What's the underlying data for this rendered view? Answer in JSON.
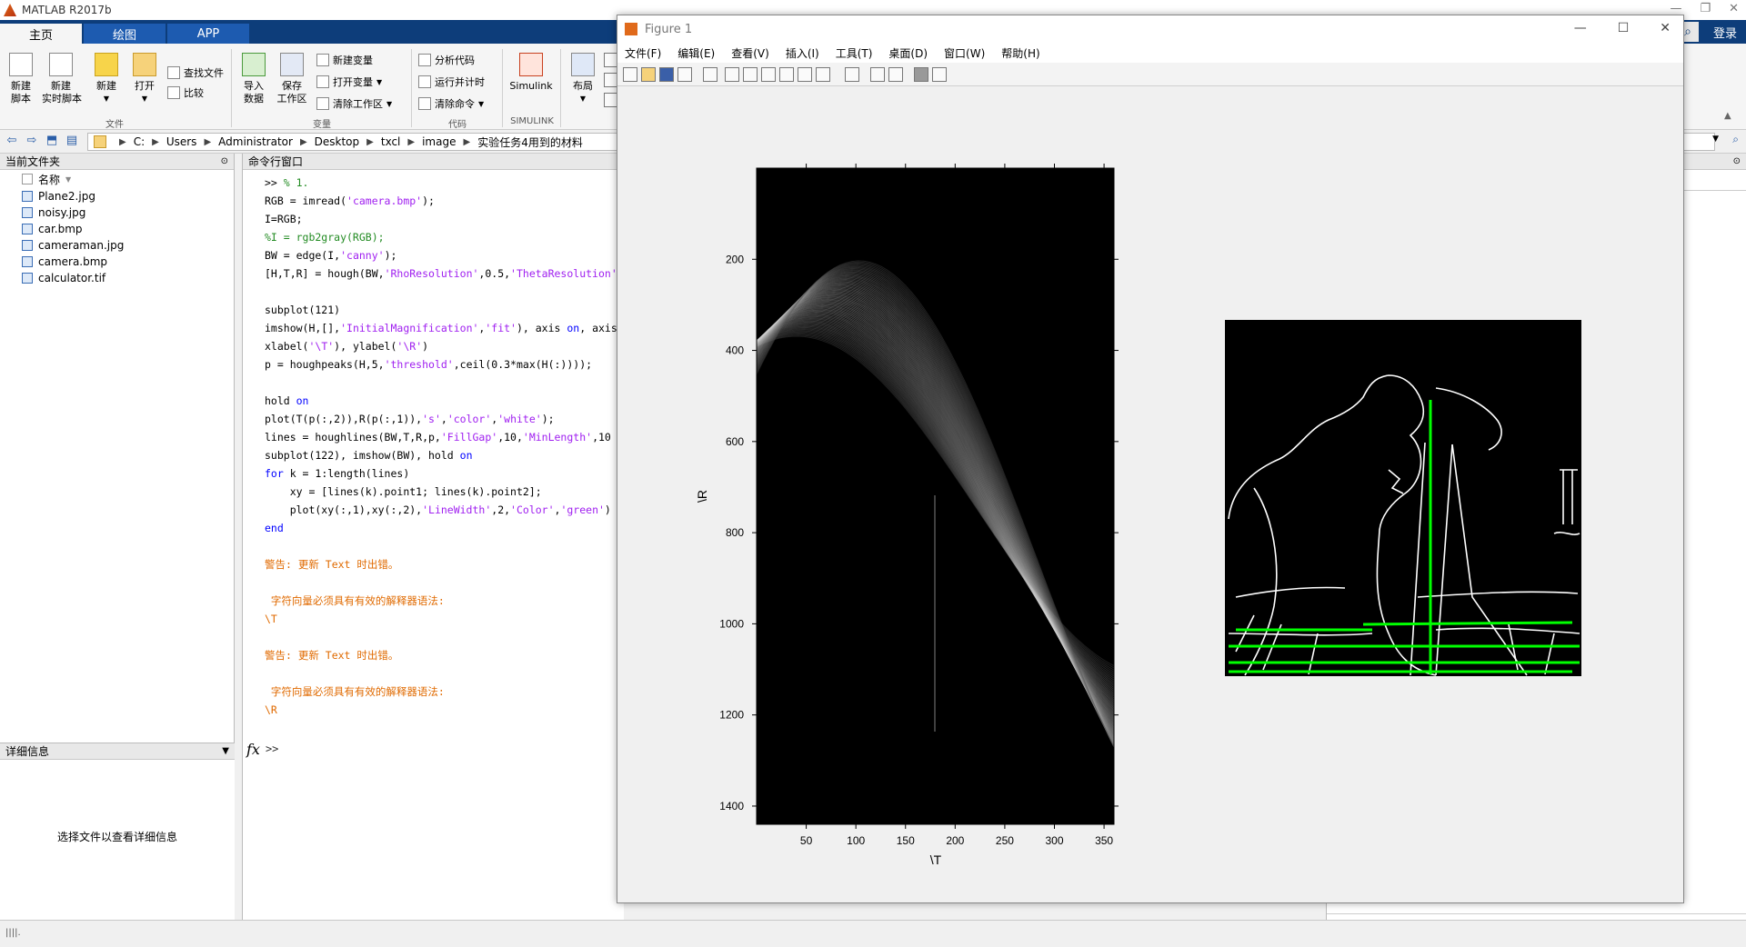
{
  "app": {
    "title": "MATLAB R2017b",
    "login": "登录"
  },
  "tabs": [
    "主页",
    "绘图",
    "APP"
  ],
  "ribbon": {
    "new_script": "新建\n脚本",
    "new_live_script": "新建\n实时脚本",
    "new": "新建",
    "open": "打开",
    "find_files": "查找文件",
    "compare": "比较",
    "import_data": "导入\n数据",
    "save_workspace": "保存\n工作区",
    "new_variable": "新建变量",
    "open_variable": "打开变量",
    "clear_workspace": "清除工作区",
    "analyze_code": "分析代码",
    "run_and_time": "运行并计时",
    "clear_commands": "清除命令",
    "simulink": "Simulink",
    "layout": "布局",
    "groups": {
      "file": "文件",
      "variable": "变量",
      "code": "代码",
      "simulink": "SIMULINK"
    }
  },
  "address": {
    "segments": [
      "C:",
      "Users",
      "Administrator",
      "Desktop",
      "txcl",
      "image",
      "实验任务4用到的材料"
    ]
  },
  "current_folder": {
    "title": "当前文件夹",
    "col_name": "名称",
    "files": [
      "Plane2.jpg",
      "noisy.jpg",
      "car.bmp",
      "cameraman.jpg",
      "camera.bmp",
      "calculator.tif"
    ]
  },
  "details": {
    "title": "详细信息",
    "message": "选择文件以查看详细信息"
  },
  "command_window": {
    "title": "命令行窗口",
    "prompt": ">>",
    "lines": [
      [
        {
          "t": ">> ",
          "c": ""
        },
        {
          "t": "% 1.",
          "c": "cm"
        }
      ],
      [
        {
          "t": "RGB = imread(",
          "c": ""
        },
        {
          "t": "'camera.bmp'",
          "c": "str"
        },
        {
          "t": ");",
          "c": ""
        }
      ],
      [
        {
          "t": "I=RGB;",
          "c": ""
        }
      ],
      [
        {
          "t": "%I = rgb2gray(RGB);",
          "c": "cm"
        }
      ],
      [
        {
          "t": "BW = edge(I,",
          "c": ""
        },
        {
          "t": "'canny'",
          "c": "str"
        },
        {
          "t": ");",
          "c": ""
        }
      ],
      [
        {
          "t": "[H,T,R] = hough(BW,",
          "c": ""
        },
        {
          "t": "'RhoResolution'",
          "c": "str"
        },
        {
          "t": ",0.5,",
          "c": ""
        },
        {
          "t": "'ThetaResolution'",
          "c": "str"
        }
      ],
      [
        {
          "t": "",
          "c": ""
        }
      ],
      [
        {
          "t": "subplot(121)",
          "c": ""
        }
      ],
      [
        {
          "t": "imshow(H,[],",
          "c": ""
        },
        {
          "t": "'InitialMagnification'",
          "c": "str"
        },
        {
          "t": ",",
          "c": ""
        },
        {
          "t": "'fit'",
          "c": "str"
        },
        {
          "t": "), axis ",
          "c": ""
        },
        {
          "t": "on",
          "c": "kw"
        },
        {
          "t": ", axis",
          "c": ""
        }
      ],
      [
        {
          "t": "xlabel(",
          "c": ""
        },
        {
          "t": "'\\T'",
          "c": "str"
        },
        {
          "t": "), ylabel(",
          "c": ""
        },
        {
          "t": "'\\R'",
          "c": "str"
        },
        {
          "t": ")",
          "c": ""
        }
      ],
      [
        {
          "t": "p = houghpeaks(H,5,",
          "c": ""
        },
        {
          "t": "'threshold'",
          "c": "str"
        },
        {
          "t": ",ceil(0.3*max(H(:))));",
          "c": ""
        }
      ],
      [
        {
          "t": "",
          "c": ""
        }
      ],
      [
        {
          "t": "hold ",
          "c": ""
        },
        {
          "t": "on",
          "c": "kw"
        }
      ],
      [
        {
          "t": "plot(T(p(:,2)),R(p(:,1)),",
          "c": ""
        },
        {
          "t": "'s'",
          "c": "str"
        },
        {
          "t": ",",
          "c": ""
        },
        {
          "t": "'color'",
          "c": "str"
        },
        {
          "t": ",",
          "c": ""
        },
        {
          "t": "'white'",
          "c": "str"
        },
        {
          "t": ");",
          "c": ""
        }
      ],
      [
        {
          "t": "lines = houghlines(BW,T,R,p,",
          "c": ""
        },
        {
          "t": "'FillGap'",
          "c": "str"
        },
        {
          "t": ",10,",
          "c": ""
        },
        {
          "t": "'MinLength'",
          "c": "str"
        },
        {
          "t": ",10",
          "c": ""
        }
      ],
      [
        {
          "t": "subplot(122), imshow(BW), hold ",
          "c": ""
        },
        {
          "t": "on",
          "c": "kw"
        }
      ],
      [
        {
          "t": "for",
          "c": "kw"
        },
        {
          "t": " k = 1:length(lines)",
          "c": ""
        }
      ],
      [
        {
          "t": "    xy = [lines(k).point1; lines(k).point2];",
          "c": ""
        }
      ],
      [
        {
          "t": "    plot(xy(:,1),xy(:,2),",
          "c": ""
        },
        {
          "t": "'LineWidth'",
          "c": "str"
        },
        {
          "t": ",2,",
          "c": ""
        },
        {
          "t": "'Color'",
          "c": "str"
        },
        {
          "t": ",",
          "c": ""
        },
        {
          "t": "'green'",
          "c": "str"
        },
        {
          "t": ")",
          "c": ""
        }
      ],
      [
        {
          "t": "end",
          "c": "kw"
        }
      ],
      [
        {
          "t": "",
          "c": ""
        }
      ],
      [
        {
          "t": "警告: 更新 Text 时出错。",
          "c": "warn"
        }
      ],
      [
        {
          "t": "",
          "c": ""
        }
      ],
      [
        {
          "t": " 字符向量必须具有有效的解释器语法:",
          "c": "warn"
        }
      ],
      [
        {
          "t": "\\T",
          "c": "warn"
        }
      ],
      [
        {
          "t": "",
          "c": ""
        }
      ],
      [
        {
          "t": "警告: 更新 Text 时出错。",
          "c": "warn"
        }
      ],
      [
        {
          "t": "",
          "c": ""
        }
      ],
      [
        {
          "t": " 字符向量必须具有有效的解释器语法:",
          "c": "warn"
        }
      ],
      [
        {
          "t": "\\R",
          "c": "warn"
        }
      ]
    ]
  },
  "figure": {
    "title": "Figure 1",
    "menu": [
      "文件(F)",
      "编辑(E)",
      "查看(V)",
      "插入(I)",
      "工具(T)",
      "桌面(D)",
      "窗口(W)",
      "帮助(H)"
    ]
  },
  "chart_data": {
    "type": "heatmap",
    "title": "",
    "xlabel": "\\T",
    "ylabel": "\\R",
    "xticks": [
      50,
      100,
      150,
      200,
      250,
      300,
      350
    ],
    "yticks": [
      200,
      400,
      600,
      800,
      1000,
      1200,
      1400
    ],
    "xlim": [
      0,
      360
    ],
    "ylim": [
      1440,
      0
    ]
  },
  "colors": {
    "tabbar": "#0d3d7a",
    "edge_lines": "#00ff00",
    "keyword": "#0000ff",
    "string": "#a020f0",
    "comment": "#228b22",
    "warning": "#e06a00"
  }
}
